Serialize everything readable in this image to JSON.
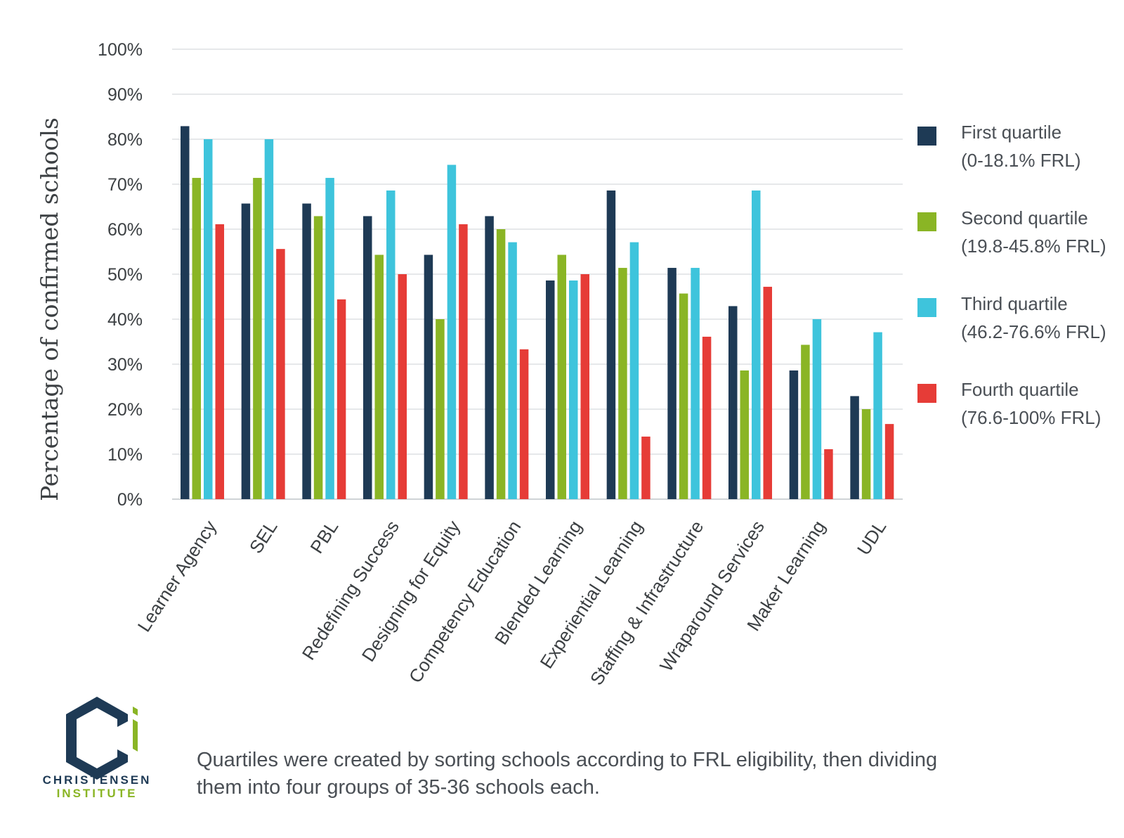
{
  "chart_data": {
    "type": "bar",
    "ylabel": "Percentage of confirmed schools",
    "ylim": [
      0,
      100
    ],
    "yticks": [
      "0%",
      "10%",
      "20%",
      "30%",
      "40%",
      "50%",
      "60%",
      "70%",
      "80%",
      "90%",
      "100%"
    ],
    "grid": true,
    "legend_position": "right",
    "categories": [
      "Learner Agency",
      "SEL",
      "PBL",
      "Redefining Success",
      "Designing for Equity",
      "Competency Education",
      "Blended Learning",
      "Experiential Learning",
      "Staffing & Infrastructure",
      "Wraparound Services",
      "Maker Learning",
      "UDL"
    ],
    "series": [
      {
        "name": "First quartile",
        "detail": "(0-18.1% FRL)",
        "color": "#1e3a55",
        "values": [
          82.9,
          65.7,
          65.7,
          62.9,
          54.3,
          62.9,
          48.6,
          68.6,
          51.4,
          42.9,
          28.6,
          22.9
        ]
      },
      {
        "name": "Second quartile",
        "detail": "(19.8-45.8% FRL)",
        "color": "#8ab525",
        "values": [
          71.4,
          71.4,
          62.9,
          54.3,
          40.0,
          60.0,
          54.3,
          51.4,
          45.7,
          28.6,
          34.3,
          20.0
        ]
      },
      {
        "name": "Third quartile",
        "detail": "(46.2-76.6% FRL)",
        "color": "#3ec4dc",
        "values": [
          80.0,
          80.0,
          71.4,
          68.6,
          74.3,
          57.1,
          48.6,
          57.1,
          51.4,
          68.6,
          40.0,
          37.1
        ]
      },
      {
        "name": "Fourth quartile",
        "detail": "(76.6-100% FRL)",
        "color": "#e63c37",
        "values": [
          61.1,
          55.6,
          44.4,
          50.0,
          61.1,
          33.3,
          50.0,
          13.9,
          36.1,
          47.2,
          11.1,
          16.7
        ]
      }
    ]
  },
  "footnote": {
    "line1": "Quartiles were created by sorting schools according to FRL eligibility, then dividing",
    "line2": "them into four groups of 35-36 schools each."
  },
  "logo": {
    "line1": "CHRISTENSEN",
    "line2": "INSTITUTE",
    "navy": "#1e3a55",
    "green": "#8ab525"
  }
}
